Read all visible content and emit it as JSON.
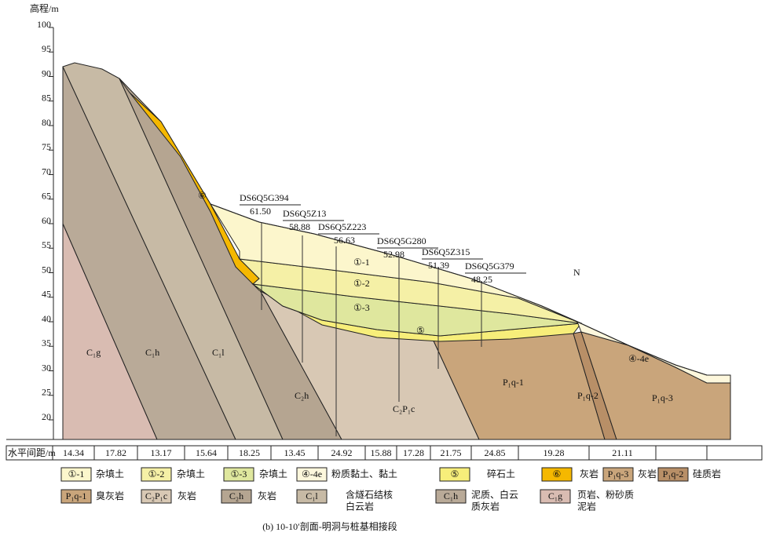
{
  "axis": {
    "title": "高程/m",
    "ticks": [
      "100",
      "95",
      "90",
      "85",
      "80",
      "75",
      "70",
      "65",
      "60",
      "55",
      "50",
      "45",
      "40",
      "35",
      "30",
      "25",
      "20"
    ]
  },
  "boreholes": [
    {
      "name": "DS6Q5G394",
      "elevation": "61.50"
    },
    {
      "name": "DS6Q5Z13",
      "elevation": "58.88"
    },
    {
      "name": "DS6Q5Z223",
      "elevation": "56.63"
    },
    {
      "name": "DS6Q5G280",
      "elevation": "52.98"
    },
    {
      "name": "DS6Q5Z315",
      "elevation": "51.39"
    },
    {
      "name": "DS6Q5G379",
      "elevation": "48.25"
    }
  ],
  "layer_labels": [
    "C₁g",
    "C₁h",
    "C₁l",
    "C₂h",
    "C₂P₁c",
    "P₁q-1",
    "P₁q-2",
    "P₁q-3",
    "①-1",
    "①-2",
    "①-3",
    "⑤",
    "⑥",
    "④-4e",
    "N"
  ],
  "spacing": {
    "label": "水平间距/m",
    "values": [
      "14.34",
      "17.82",
      "13.17",
      "15.64",
      "18.25",
      "13.45",
      "24.92",
      "15.88",
      "17.28",
      "21.75",
      "24.85",
      "19.28",
      "21.11"
    ]
  },
  "legend": [
    {
      "code": "①-1",
      "lines": [
        "杂填土"
      ]
    },
    {
      "code": "①-2",
      "lines": [
        "杂填土"
      ]
    },
    {
      "code": "①-3",
      "lines": [
        "杂填土"
      ]
    },
    {
      "code": "④-4e",
      "lines": [
        "粉质黏土、黏土"
      ]
    },
    {
      "code": "⑤",
      "lines": [
        "碎石土"
      ]
    },
    {
      "code": "⑥",
      "lines": [
        "灰岩"
      ]
    },
    {
      "code": "P₁q-3",
      "lines": [
        "灰岩"
      ]
    },
    {
      "code": "P₁q-2",
      "lines": [
        "硅质岩"
      ]
    },
    {
      "code": "P₁q-1",
      "lines": [
        "臭灰岩"
      ]
    },
    {
      "code": "C₂P₁c",
      "lines": [
        "灰岩"
      ]
    },
    {
      "code": "C₂h",
      "lines": [
        "灰岩"
      ]
    },
    {
      "code": "C₁l",
      "lines": [
        "含燧石结核",
        "白云岩"
      ]
    },
    {
      "code": "C₁h",
      "lines": [
        "泥质、白云",
        "质灰岩"
      ]
    },
    {
      "code": "C₁g",
      "lines": [
        "页岩、粉砂质",
        "泥岩"
      ]
    }
  ],
  "caption": "(b) 10-10′剖面-明洞与桩基相接段"
}
